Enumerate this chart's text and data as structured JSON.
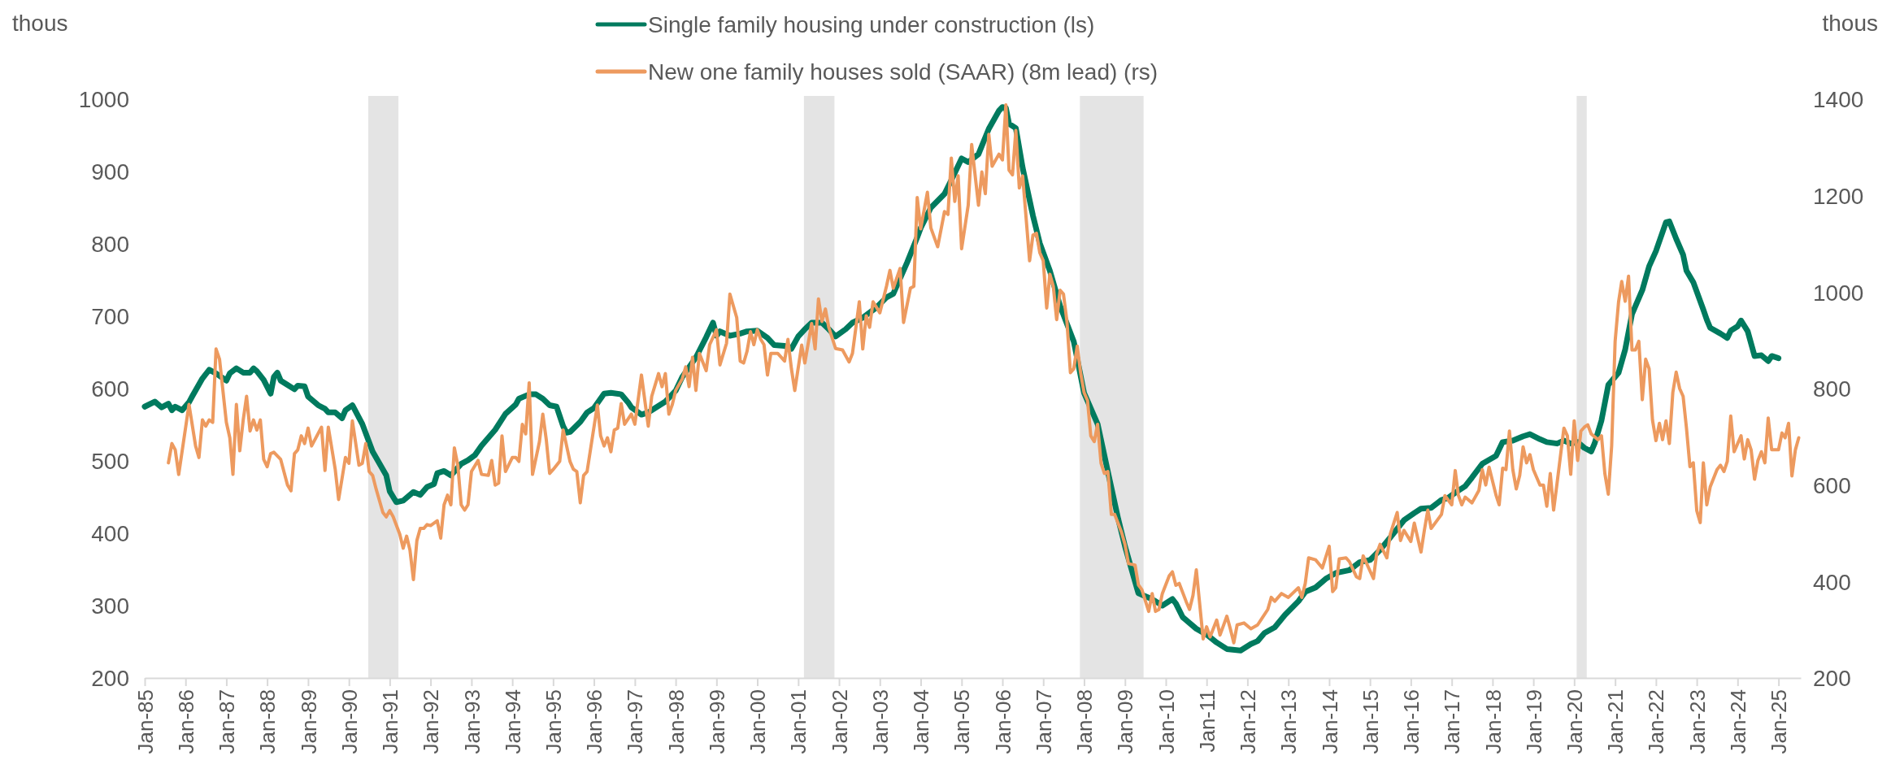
{
  "chart_data": {
    "type": "line",
    "ylabel": "thous",
    "y2label": "thous",
    "legend": "top",
    "grid": false,
    "xlim": [
      "1985-01",
      "2025-07-19"
    ],
    "xticks": [
      {
        "value": "1985-01",
        "label": "Jan-85"
      },
      {
        "value": "1986-01",
        "label": "Jan-86"
      },
      {
        "value": "1987-01",
        "label": "Jan-87"
      },
      {
        "value": "1988-01",
        "label": "Jan-88"
      },
      {
        "value": "1989-01",
        "label": "Jan-89"
      },
      {
        "value": "1990-01",
        "label": "Jan-90"
      },
      {
        "value": "1991-01",
        "label": "Jan-91"
      },
      {
        "value": "1992-01",
        "label": "Jan-92"
      },
      {
        "value": "1993-01",
        "label": "Jan-93"
      },
      {
        "value": "1994-01",
        "label": "Jan-94"
      },
      {
        "value": "1995-01",
        "label": "Jan-95"
      },
      {
        "value": "1996-01",
        "label": "Jan-96"
      },
      {
        "value": "1997-01",
        "label": "Jan-97"
      },
      {
        "value": "1998-01",
        "label": "Jan-98"
      },
      {
        "value": "1999-01",
        "label": "Jan-99"
      },
      {
        "value": "2000-01",
        "label": "Jan-00"
      },
      {
        "value": "2001-01",
        "label": "Jan-01"
      },
      {
        "value": "2002-01",
        "label": "Jan-02"
      },
      {
        "value": "2003-01",
        "label": "Jan-03"
      },
      {
        "value": "2004-01",
        "label": "Jan-04"
      },
      {
        "value": "2005-01",
        "label": "Jan-05"
      },
      {
        "value": "2006-01",
        "label": "Jan-06"
      },
      {
        "value": "2007-01",
        "label": "Jan-07"
      },
      {
        "value": "2008-01",
        "label": "Jan-08"
      },
      {
        "value": "2009-01",
        "label": "Jan-09"
      },
      {
        "value": "2010-01",
        "label": "Jan-10"
      },
      {
        "value": "2011-01",
        "label": "Jan-11"
      },
      {
        "value": "2012-01",
        "label": "Jan-12"
      },
      {
        "value": "2013-01",
        "label": "Jan-13"
      },
      {
        "value": "2014-01",
        "label": "Jan-14"
      },
      {
        "value": "2015-01",
        "label": "Jan-15"
      },
      {
        "value": "2016-01",
        "label": "Jan-16"
      },
      {
        "value": "2017-01",
        "label": "Jan-17"
      },
      {
        "value": "2018-01",
        "label": "Jan-18"
      },
      {
        "value": "2019-01",
        "label": "Jan-19"
      },
      {
        "value": "2020-01",
        "label": "Jan-20"
      },
      {
        "value": "2021-01",
        "label": "Jan-21"
      },
      {
        "value": "2022-01",
        "label": "Jan-22"
      },
      {
        "value": "2023-01",
        "label": "Jan-23"
      },
      {
        "value": "2024-01",
        "label": "Jan-24"
      },
      {
        "value": "2025-01",
        "label": "Jan-25"
      }
    ],
    "ylim": [
      200,
      1000
    ],
    "yticks": [
      200,
      300,
      400,
      500,
      600,
      700,
      800,
      900,
      1000
    ],
    "y2lim": [
      200,
      1400
    ],
    "y2ticks": [
      200,
      400,
      600,
      800,
      1000,
      1200,
      1400
    ],
    "bands": [
      {
        "axis": "x",
        "from": "1990-06-23",
        "to": "1991-03-20",
        "color": "#e4e4e4"
      },
      {
        "axis": "x",
        "from": "2001-02-21",
        "to": "2001-11-21",
        "color": "#e4e4e4"
      },
      {
        "axis": "x",
        "from": "2007-11-25",
        "to": "2009-06-16",
        "color": "#e4e4e4"
      },
      {
        "axis": "x",
        "from": "2020-01-23",
        "to": "2020-04-22",
        "color": "#e4e4e4"
      }
    ],
    "series": [
      {
        "name": "Single family housing under construction (ls)",
        "color": "#007a5e",
        "x": [
          "1985-01",
          "1985-04",
          "1985-06",
          "1985-08",
          "1985-09",
          "1985-10",
          "1985-12",
          "1986-02",
          "1986-03",
          "1986-06",
          "1986-08",
          "1986-10",
          "1987-01",
          "1987-02",
          "1987-04",
          "1987-06",
          "1987-08",
          "1987-09",
          "1987-10",
          "1987-12",
          "1988-02",
          "1988-03",
          "1988-04",
          "1988-05",
          "1988-07",
          "1988-09",
          "1988-10",
          "1988-12",
          "1989-01",
          "1989-04",
          "1989-06",
          "1989-07",
          "1989-09",
          "1989-11",
          "1989-12",
          "1990-02",
          "1990-05",
          "1990-08",
          "1990-12",
          "1991-01",
          "1991-03",
          "1991-05",
          "1991-08",
          "1991-10",
          "1991-12",
          "1992-02",
          "1992-03",
          "1992-05",
          "1992-07",
          "1992-10",
          "1992-12",
          "1993-02",
          "1993-04",
          "1993-08",
          "1993-11",
          "1994-02",
          "1994-03",
          "1994-06",
          "1994-08",
          "1994-10",
          "1994-12",
          "1995-02",
          "1995-04",
          "1995-05",
          "1995-06",
          "1995-09",
          "1995-11",
          "1996-01",
          "1996-04",
          "1996-06",
          "1996-09",
          "1996-11",
          "1996-12",
          "1997-03",
          "1997-05",
          "1997-07",
          "1997-10",
          "1998-01",
          "1998-03",
          "1998-07",
          "1998-10",
          "1998-12",
          "1999-01",
          "1999-02",
          "1999-05",
          "1999-08",
          "1999-10",
          "2000-01",
          "2000-04",
          "2000-06",
          "2000-09",
          "2000-11",
          "2001-01",
          "2001-03",
          "2001-05",
          "2001-08",
          "2001-10",
          "2001-12",
          "2002-03",
          "2002-05",
          "2002-08",
          "2002-12",
          "2003-03",
          "2003-05",
          "2003-09",
          "2003-12",
          "2004-01",
          "2004-04",
          "2004-08",
          "2004-10",
          "2005-01",
          "2005-03",
          "2005-06",
          "2005-09",
          "2005-12",
          "2006-01",
          "2006-02",
          "2006-03",
          "2006-05",
          "2006-07",
          "2006-10",
          "2006-12",
          "2007-03",
          "2007-06",
          "2007-10",
          "2008-01",
          "2008-05",
          "2008-08",
          "2008-11",
          "2009-01",
          "2009-04",
          "2009-05",
          "2009-08",
          "2009-10",
          "2009-12",
          "2010-03",
          "2010-04",
          "2010-06",
          "2010-10",
          "2011-01",
          "2011-04",
          "2011-07",
          "2011-11",
          "2012-02",
          "2012-04",
          "2012-06",
          "2012-09",
          "2012-12",
          "2013-04",
          "2013-06",
          "2013-09",
          "2013-12",
          "2014-03",
          "2014-07",
          "2014-10",
          "2015-01",
          "2015-04",
          "2015-07",
          "2015-11",
          "2016-02",
          "2016-04",
          "2016-07",
          "2016-10",
          "2016-12",
          "2017-02",
          "2017-05",
          "2017-07",
          "2017-10",
          "2018-02",
          "2018-04",
          "2018-07",
          "2018-10",
          "2018-12",
          "2019-03",
          "2019-05",
          "2019-08",
          "2019-10",
          "2019-12",
          "2020-02",
          "2020-04",
          "2020-06",
          "2020-07",
          "2020-09",
          "2020-11",
          "2021-02",
          "2021-04",
          "2021-06",
          "2021-09",
          "2021-11",
          "2022-01",
          "2022-04",
          "2022-05",
          "2022-07",
          "2022-09",
          "2022-10",
          "2022-12",
          "2023-03",
          "2023-04",
          "2023-05",
          "2023-08",
          "2023-10",
          "2023-11",
          "2024-01",
          "2024-02",
          "2024-04",
          "2024-06",
          "2024-08",
          "2024-10",
          "2024-11",
          "2025-01"
        ],
        "values": [
          575,
          582,
          574,
          579,
          570,
          575,
          570,
          581,
          589,
          614,
          626,
          621,
          611,
          621,
          628,
          622,
          622,
          628,
          624,
          612,
          593,
          616,
          622,
          611,
          605,
          599,
          604,
          603,
          589,
          577,
          572,
          567,
          567,
          559,
          570,
          577,
          551,
          513,
          480,
          458,
          443,
          445,
          457,
          453,
          464,
          468,
          483,
          486,
          480,
          496,
          501,
          508,
          521,
          543,
          565,
          578,
          586,
          592,
          592,
          586,
          577,
          575,
          548,
          539,
          540,
          554,
          567,
          573,
          593,
          594,
          592,
          581,
          574,
          564,
          567,
          573,
          582,
          597,
          616,
          643,
          671,
          691,
          673,
          679,
          673,
          676,
          679,
          680,
          670,
          660,
          659,
          655,
          672,
          682,
          691,
          691,
          682,
          672,
          682,
          691,
          698,
          712,
          726,
          731,
          774,
          809,
          822,
          850,
          869,
          888,
          918,
          913,
          924,
          959,
          984,
          989,
          988,
          966,
          960,
          905,
          839,
          801,
          763,
          714,
          665,
          594,
          551,
          485,
          420,
          382,
          333,
          317,
          311,
          306,
          300,
          309,
          303,
          284,
          268,
          260,
          249,
          240,
          238,
          247,
          251,
          262,
          270,
          287,
          306,
          319,
          325,
          337,
          345,
          349,
          360,
          363,
          377,
          394,
          418,
          428,
          434,
          435,
          446,
          449,
          456,
          465,
          477,
          496,
          507,
          526,
          528,
          534,
          537,
          530,
          526,
          524,
          528,
          524,
          526,
          518,
          513,
          524,
          556,
          605,
          622,
          654,
          703,
          736,
          769,
          790,
          830,
          831,
          807,
          785,
          763,
          747,
          709,
          695,
          684,
          676,
          670,
          680,
          686,
          694,
          679,
          645,
          646,
          638,
          645,
          642
        ]
      },
      {
        "name": "New one family houses sold (SAAR) (8m lead) (rs)",
        "color": "#ed9a5f",
        "axis": "y2",
        "x": [
          "1985-08",
          "1985-09",
          "1985-10",
          "1985-11",
          "1986-02",
          "1986-04",
          "1986-05",
          "1986-06",
          "1986-07",
          "1986-08",
          "1986-09",
          "1986-10",
          "1986-11",
          "1987-01",
          "1987-02",
          "1987-03",
          "1987-04",
          "1987-05",
          "1987-06",
          "1987-07",
          "1987-08",
          "1987-09",
          "1987-10",
          "1987-11",
          "1987-12",
          "1988-01",
          "1988-02",
          "1988-03",
          "1988-05",
          "1988-07",
          "1988-08",
          "1988-09",
          "1988-10",
          "1988-11",
          "1988-12",
          "1989-01",
          "1989-02",
          "1989-05",
          "1989-06",
          "1989-07",
          "1989-09",
          "1989-10",
          "1989-12",
          "1990-01",
          "1990-02",
          "1990-04",
          "1990-05",
          "1990-06",
          "1990-07",
          "1990-08",
          "1990-09",
          "1990-11",
          "1990-12",
          "1991-01",
          "1991-02",
          "1991-04",
          "1991-05",
          "1991-06",
          "1991-07",
          "1991-08",
          "1991-09",
          "1991-10",
          "1991-11",
          "1991-12",
          "1992-01",
          "1992-03",
          "1992-04",
          "1992-05",
          "1992-06",
          "1992-07",
          "1992-08",
          "1992-09",
          "1992-10",
          "1992-11",
          "1992-12",
          "1993-01",
          "1993-03",
          "1993-04",
          "1993-06",
          "1993-07",
          "1993-08",
          "1993-09",
          "1993-10",
          "1993-11",
          "1994-01",
          "1994-02",
          "1994-03",
          "1994-04",
          "1994-05",
          "1994-06",
          "1994-07",
          "1994-09",
          "1994-10",
          "1994-11",
          "1994-12",
          "1995-01",
          "1995-03",
          "1995-04",
          "1995-06",
          "1995-07",
          "1995-08",
          "1995-09",
          "1995-10",
          "1995-11",
          "1996-02",
          "1996-03",
          "1996-04",
          "1996-05",
          "1996-06",
          "1996-07",
          "1996-08",
          "1996-09",
          "1996-10",
          "1996-12",
          "1997-01",
          "1997-03",
          "1997-05",
          "1997-06",
          "1997-08",
          "1997-09",
          "1997-10",
          "1997-11",
          "1997-12",
          "1998-01",
          "1998-03",
          "1998-04",
          "1998-05",
          "1998-06",
          "1998-07",
          "1998-08",
          "1998-10",
          "1998-11",
          "1999-01",
          "1999-02",
          "1999-04",
          "1999-05",
          "1999-07",
          "1999-08",
          "1999-09",
          "1999-10",
          "1999-11",
          "1999-12",
          "2000-01",
          "2000-02",
          "2000-03",
          "2000-04",
          "2000-05",
          "2000-07",
          "2000-09",
          "2000-10",
          "2000-11",
          "2000-12",
          "2001-02",
          "2001-03",
          "2001-05",
          "2001-06",
          "2001-07",
          "2001-08",
          "2001-09",
          "2001-10",
          "2001-12",
          "2002-02",
          "2002-04",
          "2002-05",
          "2002-07",
          "2002-08",
          "2002-09",
          "2002-10",
          "2002-11",
          "2003-01",
          "2003-03",
          "2003-04",
          "2003-05",
          "2003-07",
          "2003-08",
          "2003-10",
          "2003-11",
          "2003-12",
          "2004-01",
          "2004-03",
          "2004-04",
          "2004-06",
          "2004-08",
          "2004-09",
          "2004-10",
          "2004-11",
          "2004-12",
          "2005-01",
          "2005-03",
          "2005-04",
          "2005-06",
          "2005-07",
          "2005-08",
          "2005-09",
          "2005-10",
          "2005-12",
          "2006-01",
          "2006-02",
          "2006-03",
          "2006-04",
          "2006-05",
          "2006-06",
          "2006-07",
          "2006-09",
          "2006-10",
          "2006-11",
          "2006-12",
          "2007-01",
          "2007-02",
          "2007-03",
          "2007-04",
          "2007-05",
          "2007-06",
          "2007-07",
          "2007-08",
          "2007-09",
          "2007-10",
          "2007-11",
          "2007-12",
          "2008-01",
          "2008-02",
          "2008-03",
          "2008-04",
          "2008-05",
          "2008-06",
          "2008-07",
          "2008-08",
          "2008-09",
          "2008-10",
          "2008-12",
          "2009-01",
          "2009-02",
          "2009-04",
          "2009-05",
          "2009-06",
          "2009-08",
          "2009-09",
          "2009-10",
          "2009-11",
          "2009-12",
          "2010-02",
          "2010-03",
          "2010-04",
          "2010-05",
          "2010-07",
          "2010-08",
          "2010-09",
          "2010-10",
          "2010-12",
          "2011-01",
          "2011-02",
          "2011-04",
          "2011-05",
          "2011-07",
          "2011-08",
          "2011-09",
          "2011-10",
          "2011-12",
          "2012-02",
          "2012-04",
          "2012-07",
          "2012-08",
          "2012-09",
          "2012-11",
          "2013-01",
          "2013-04",
          "2013-05",
          "2013-06",
          "2013-07",
          "2013-09",
          "2013-11",
          "2014-01",
          "2014-02",
          "2014-03",
          "2014-04",
          "2014-06",
          "2014-07",
          "2014-09",
          "2014-10",
          "2014-11",
          "2015-02",
          "2015-03",
          "2015-04",
          "2015-06",
          "2015-07",
          "2015-09",
          "2015-10",
          "2015-11",
          "2016-01",
          "2016-02",
          "2016-04",
          "2016-05",
          "2016-06",
          "2016-07",
          "2016-10",
          "2016-11",
          "2017-01",
          "2017-02",
          "2017-03",
          "2017-04",
          "2017-05",
          "2017-07",
          "2017-09",
          "2017-10",
          "2017-11",
          "2017-12",
          "2018-02",
          "2018-03",
          "2018-04",
          "2018-05",
          "2018-06",
          "2018-07",
          "2018-08",
          "2018-09",
          "2018-10",
          "2018-11",
          "2018-12",
          "2019-01",
          "2019-03",
          "2019-04",
          "2019-05",
          "2019-06",
          "2019-07",
          "2019-08",
          "2019-10",
          "2019-11",
          "2019-12",
          "2020-01",
          "2020-02",
          "2020-03",
          "2020-04",
          "2020-05",
          "2020-06",
          "2020-08",
          "2020-09",
          "2020-10",
          "2020-11",
          "2020-12",
          "2021-01",
          "2021-02",
          "2021-03",
          "2021-04",
          "2021-05",
          "2021-06",
          "2021-07",
          "2021-08",
          "2021-09",
          "2021-10",
          "2021-11",
          "2021-12",
          "2022-01",
          "2022-02",
          "2022-03",
          "2022-04",
          "2022-05",
          "2022-06",
          "2022-07",
          "2022-08",
          "2022-09",
          "2022-10",
          "2022-11",
          "2022-12",
          "2023-01",
          "2023-02",
          "2023-03",
          "2023-04",
          "2023-05",
          "2023-07",
          "2023-08",
          "2023-09",
          "2023-10",
          "2023-11",
          "2023-12",
          "2024-02",
          "2024-03",
          "2024-04",
          "2024-05",
          "2024-06",
          "2024-07",
          "2024-08",
          "2024-09",
          "2024-10",
          "2024-11",
          "2025-01",
          "2025-02",
          "2025-03",
          "2025-04",
          "2025-05",
          "2025-06",
          "2025-07"
        ],
        "values": [
          646,
          686,
          673,
          622,
          767,
          681,
          657,
          735,
          722,
          735,
          730,
          882,
          861,
          730,
          698,
          622,
          767,
          671,
          735,
          784,
          712,
          735,
          714,
          735,
          653,
          638,
          665,
          668,
          653,
          600,
          588,
          665,
          673,
          702,
          686,
          718,
          681,
          720,
          630,
          720,
          632,
          570,
          657,
          645,
          733,
          641,
          645,
          686,
          628,
          620,
          592,
          543,
          534,
          547,
          534,
          498,
          469,
          494,
          465,
          404,
          485,
          510,
          510,
          518,
          516,
          526,
          490,
          559,
          579,
          559,
          677,
          641,
          559,
          548,
          559,
          628,
          651,
          622,
          620,
          651,
          600,
          604,
          702,
          628,
          657,
          657,
          649,
          726,
          706,
          812,
          622,
          690,
          747,
          694,
          624,
          632,
          649,
          714,
          649,
          633,
          628,
          563,
          620,
          628,
          766,
          702,
          681,
          698,
          669,
          714,
          718,
          769,
          726,
          747,
          726,
          828,
          722,
          784,
          831,
          804,
          831,
          747,
          766,
          796,
          820,
          845,
          804,
          865,
          796,
          873,
          837,
          891,
          922,
          849,
          894,
          996,
          947,
          857,
          853,
          877,
          918,
          891,
          922,
          902,
          891,
          828,
          873,
          873,
          857,
          902,
          841,
          796,
          890,
          853,
          935,
          882,
          986,
          939,
          965,
          927,
          883,
          880,
          855,
          873,
          980,
          882,
          951,
          927,
          980,
          957,
          1012,
          1045,
          1008,
          1049,
          937,
          1008,
          1012,
          1196,
          1131,
          1207,
          1133,
          1094,
          1167,
          1161,
          1278,
          1188,
          1241,
          1090,
          1180,
          1306,
          1180,
          1249,
          1204,
          1327,
          1261,
          1286,
          1274,
          1388,
          1253,
          1243,
          1335,
          1216,
          1241,
          1065,
          1118,
          1122,
          1082,
          1065,
          967,
          1037,
          1012,
          943,
          1004,
          996,
          939,
          833,
          841,
          888,
          833,
          792,
          775,
          702,
          690,
          726,
          645,
          624,
          628,
          539,
          539,
          502,
          477,
          437,
          434,
          393,
          383,
          338,
          375,
          338,
          342,
          375,
          412,
          420,
          392,
          396,
          359,
          342,
          371,
          424,
          281,
          306,
          285,
          320,
          289,
          328,
          302,
          273,
          310,
          314,
          302,
          310,
          342,
          367,
          359,
          375,
          367,
          387,
          367,
          396,
          449,
          445,
          428,
          473,
          379,
          387,
          447,
          449,
          441,
          410,
          406,
          453,
          406,
          457,
          477,
          449,
          498,
          543,
          485,
          506,
          483,
          521,
          461,
          506,
          548,
          510,
          539,
          578,
          559,
          630,
          579,
          559,
          575,
          563,
          589,
          632,
          600,
          637,
          579,
          559,
          635,
          632,
          712,
          632,
          592,
          620,
          679,
          646,
          663,
          632,
          600,
          600,
          556,
          624,
          548,
          604,
          718,
          702,
          622,
          733,
          651,
          712,
          720,
          725,
          706,
          694,
          702,
          624,
          581,
          681,
          898,
          980,
          1022,
          981,
          1033,
          880,
          880,
          898,
          777,
          861,
          841,
          735,
          692,
          728,
          694,
          733,
          686,
          792,
          834,
          800,
          784,
          718,
          638,
          646,
          547,
          522,
          646,
          559,
          596,
          632,
          641,
          628,
          649,
          743,
          669,
          702,
          654,
          694,
          673,
          612,
          651,
          669,
          646,
          739,
          673,
          673,
          708,
          698,
          728,
          619,
          673,
          698
        ]
      }
    ]
  }
}
